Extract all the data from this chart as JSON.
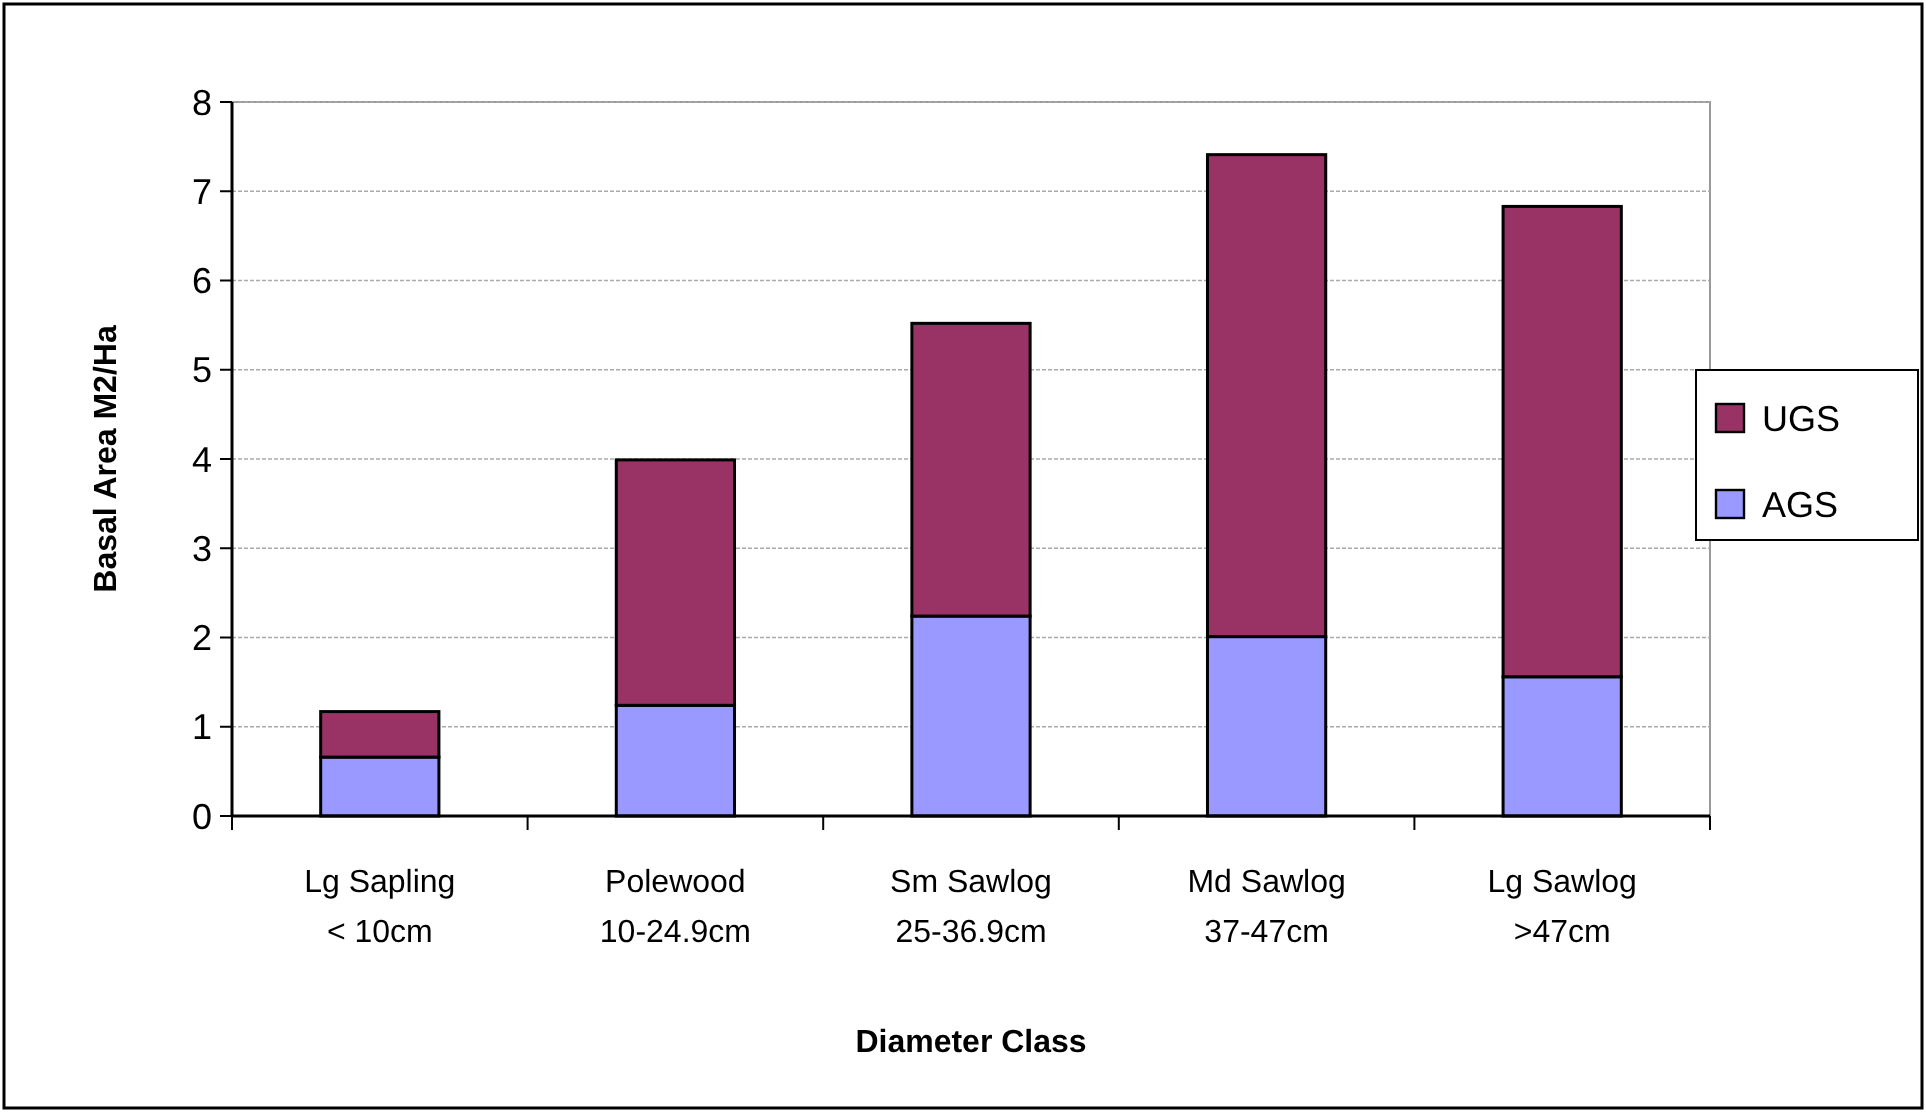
{
  "chart_data": {
    "type": "bar",
    "stacked": true,
    "xlabel": "Diameter Class",
    "ylabel": "Basal Area M2/Ha",
    "categories": [
      "Lg Sapling\n< 10cm",
      "Polewood\n10-24.9cm",
      "Sm Sawlog\n25-36.9cm",
      "Md Sawlog\n37-47cm",
      "Lg Sawlog\n>47cm"
    ],
    "series": [
      {
        "name": "AGS",
        "color": "#9999ff",
        "values": [
          0.66,
          1.24,
          2.24,
          2.01,
          1.56
        ]
      },
      {
        "name": "UGS",
        "color": "#993366",
        "values": [
          0.51,
          2.75,
          3.28,
          5.4,
          5.27
        ]
      }
    ],
    "ylim": [
      0,
      8
    ],
    "yticks": [
      0,
      1,
      2,
      3,
      4,
      5,
      6,
      7,
      8
    ],
    "grid": "y",
    "legend": "right"
  }
}
